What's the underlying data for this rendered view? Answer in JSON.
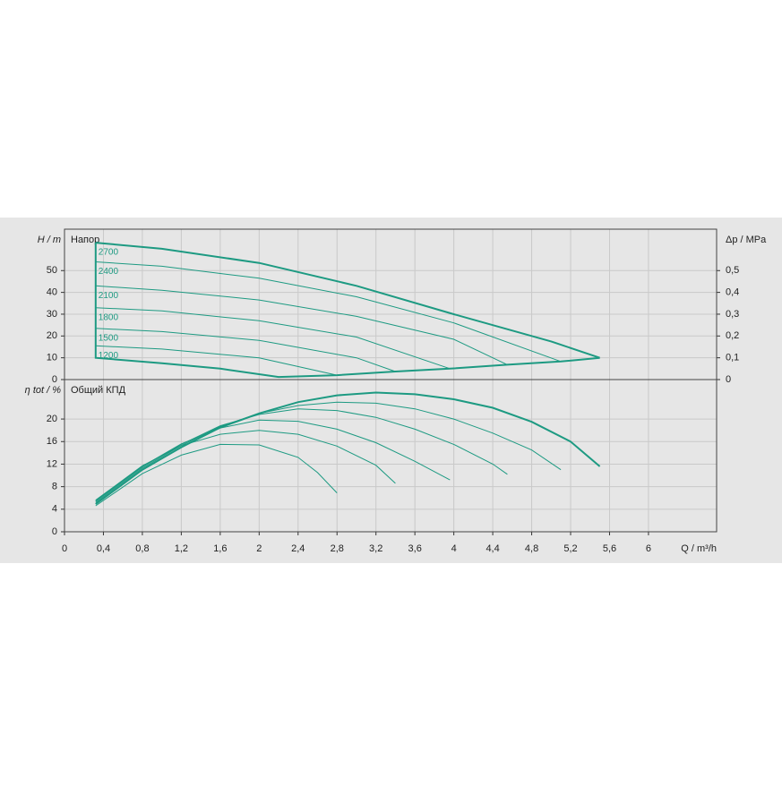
{
  "chart_data": [
    {
      "type": "line",
      "title": "Напор",
      "ylabel": "H / m",
      "y2label": "Δp / MPa",
      "color": "#1d9a82",
      "grid": true,
      "xlim": [
        0,
        6.7
      ],
      "ylim": [
        0,
        69
      ],
      "yticks": [
        0,
        10,
        20,
        30,
        40,
        50
      ],
      "y2lim": [
        0,
        0.69
      ],
      "y2ticks": [
        0,
        {
          "value": 0.1,
          "label": "0,1"
        },
        {
          "value": 0.2,
          "label": "0,2"
        },
        {
          "value": 0.3,
          "label": "0,3"
        },
        {
          "value": 0.4,
          "label": "0,4"
        },
        {
          "value": 0.5,
          "label": "0,5"
        }
      ],
      "series": [
        {
          "name": "2700",
          "x": [
            0.32,
            1,
            2,
            3,
            4,
            5,
            5.5
          ],
          "values": [
            62.8,
            60,
            53.5,
            43,
            30,
            17.5,
            10
          ]
        },
        {
          "name": "2400",
          "x": [
            0.32,
            1,
            2,
            3,
            4,
            5.1
          ],
          "values": [
            54,
            52,
            46.5,
            38,
            26,
            8.3
          ]
        },
        {
          "name": "2100",
          "x": [
            0.32,
            1,
            2,
            3,
            4,
            4.55
          ],
          "values": [
            43,
            41,
            36.5,
            29,
            18.5,
            6.8
          ]
        },
        {
          "name": "1800",
          "x": [
            0.32,
            1,
            2,
            3,
            3.96
          ],
          "values": [
            33,
            31.5,
            27,
            19.5,
            5
          ]
        },
        {
          "name": "1500",
          "x": [
            0.32,
            1,
            2,
            3,
            3.4
          ],
          "values": [
            23.5,
            22,
            18,
            10,
            3.7
          ]
        },
        {
          "name": "1200",
          "x": [
            0.32,
            1,
            2,
            2.8
          ],
          "values": [
            15.5,
            14,
            10,
            2
          ]
        }
      ],
      "envelope": {
        "x": [
          0.32,
          0.32,
          1,
          1.6,
          2.2,
          2.8,
          3.4,
          3.96,
          4.55,
          5.1,
          5.5
        ],
        "values": [
          62.8,
          10,
          7.5,
          5,
          1.2,
          2,
          3.7,
          5,
          6.8,
          8.3,
          10
        ]
      }
    },
    {
      "type": "line",
      "title": "Общий КПД",
      "ylabel": "η tot / %",
      "xlabel": "Q / m³/h",
      "color": "#1d9a82",
      "grid": true,
      "xlim": [
        0,
        6.7
      ],
      "ylim": [
        0,
        27
      ],
      "yticks": [
        0,
        4,
        8,
        12,
        16,
        20
      ],
      "xticks": [
        0,
        {
          "value": 0.4,
          "label": "0,4"
        },
        {
          "value": 0.8,
          "label": "0,8"
        },
        {
          "value": 1.2,
          "label": "1,2"
        },
        {
          "value": 1.6,
          "label": "1,6"
        },
        2,
        {
          "value": 2.4,
          "label": "2,4"
        },
        {
          "value": 2.8,
          "label": "2,8"
        },
        {
          "value": 3.2,
          "label": "3,2"
        },
        {
          "value": 3.6,
          "label": "3,6"
        },
        4,
        {
          "value": 4.4,
          "label": "4,4"
        },
        {
          "value": 4.8,
          "label": "4,8"
        },
        {
          "value": 5.2,
          "label": "5,2"
        },
        {
          "value": 5.6,
          "label": "5,6"
        },
        6
      ],
      "series": [
        {
          "x": [
            0.32,
            0.8,
            1.2,
            1.6,
            2.0,
            2.4,
            2.8,
            3.2,
            3.6,
            4.0,
            4.4,
            4.8,
            5.2,
            5.5
          ],
          "values": [
            4.9,
            11,
            15,
            18.5,
            21,
            23,
            24.2,
            24.7,
            24.4,
            23.5,
            22,
            19.5,
            16,
            11.6
          ]
        },
        {
          "x": [
            0.32,
            0.8,
            1.2,
            1.6,
            2.0,
            2.4,
            2.8,
            3.2,
            3.6,
            4.0,
            4.4,
            4.8,
            5.1
          ],
          "values": [
            5.2,
            11.3,
            15.3,
            18.7,
            21,
            22.4,
            23,
            22.8,
            21.8,
            20,
            17.5,
            14.5,
            11
          ]
        },
        {
          "x": [
            0.32,
            0.8,
            1.2,
            1.6,
            2.0,
            2.4,
            2.8,
            3.2,
            3.6,
            4.0,
            4.4,
            4.55
          ],
          "values": [
            5.4,
            11.5,
            15.5,
            18.8,
            20.8,
            21.8,
            21.5,
            20.3,
            18.2,
            15.5,
            12,
            10.2
          ]
        },
        {
          "x": [
            0.32,
            0.8,
            1.2,
            1.6,
            2.0,
            2.4,
            2.8,
            3.2,
            3.6,
            3.96
          ],
          "values": [
            5.5,
            11.6,
            15.6,
            18.4,
            19.8,
            19.6,
            18.2,
            15.8,
            12.5,
            9.2
          ]
        },
        {
          "x": [
            0.32,
            0.8,
            1.2,
            1.6,
            2.0,
            2.4,
            2.8,
            3.2,
            3.4
          ],
          "values": [
            5.6,
            11.7,
            15.3,
            17.3,
            18,
            17.3,
            15.2,
            11.8,
            8.6
          ]
        },
        {
          "x": [
            0.32,
            0.8,
            1.2,
            1.6,
            2.0,
            2.4,
            2.6,
            2.8
          ],
          "values": [
            4.6,
            10.3,
            13.6,
            15.5,
            15.4,
            13.2,
            10.5,
            6.9
          ]
        }
      ]
    }
  ]
}
